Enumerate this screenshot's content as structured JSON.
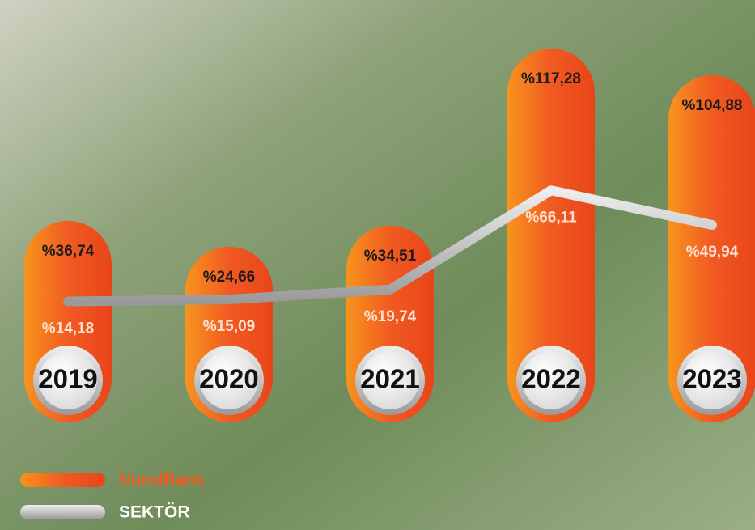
{
  "chart_data": {
    "type": "bar",
    "categories": [
      "2019",
      "2020",
      "2021",
      "2022",
      "2023"
    ],
    "series": [
      {
        "name": "NurolBank",
        "type": "bar",
        "color": "#f15a22",
        "values": [
          36.74,
          24.66,
          34.51,
          117.28,
          104.88
        ],
        "value_labels": [
          "%36,74",
          "%24,66",
          "%34,51",
          "%117,28",
          "%104,88"
        ]
      },
      {
        "name": "SEKTÖR",
        "type": "line",
        "color": "#c4c4c4",
        "values": [
          14.18,
          15.09,
          19.74,
          66.11,
          49.94
        ],
        "value_labels": [
          "%14,18",
          "%15,09",
          "%19,74",
          "%66,11",
          "%49,94"
        ]
      }
    ]
  }
}
